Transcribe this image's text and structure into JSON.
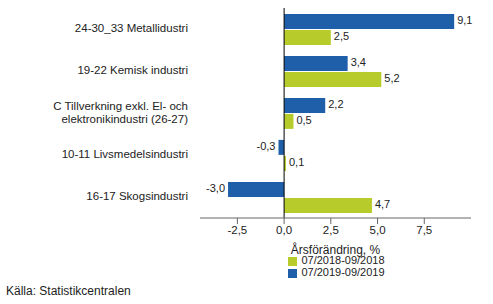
{
  "chart_data": {
    "type": "bar",
    "orientation": "horizontal",
    "x_label": "Årsförändring, %",
    "source": "Källa: Statistikcentralen",
    "categories": [
      "24-30_33 Metallidustri",
      "19-22 Kemisk industri",
      "C Tillverkning exkl. El- och elektronikindustri  (26-27)",
      "10-11 Livsmedelsindustri",
      "16-17 Skogsindustri"
    ],
    "series": [
      {
        "name": "07/2019-09/2019",
        "color": "#1f5ea8",
        "values": [
          9.1,
          3.4,
          2.2,
          -0.3,
          -3.0
        ],
        "value_labels": [
          "9,1",
          "3,4",
          "2,2",
          "-0,3",
          "-3,0"
        ]
      },
      {
        "name": "07/2018-09/2018",
        "color": "#b7cc2a",
        "values": [
          2.5,
          5.2,
          0.5,
          0.1,
          4.7
        ],
        "value_labels": [
          "2,5",
          "5,2",
          "0,5",
          "0,1",
          "4,7"
        ]
      }
    ],
    "xlim": [
      -4.5,
      10
    ],
    "xticks": [
      {
        "value": -2.5,
        "label": "-2,5"
      },
      {
        "value": 0,
        "label": "0,0"
      },
      {
        "value": 2.5,
        "label": "2,5"
      },
      {
        "value": 5,
        "label": "5,0"
      },
      {
        "value": 7.5,
        "label": "7,5"
      }
    ],
    "grid": false,
    "data_labels": true,
    "legend": "bottom"
  }
}
